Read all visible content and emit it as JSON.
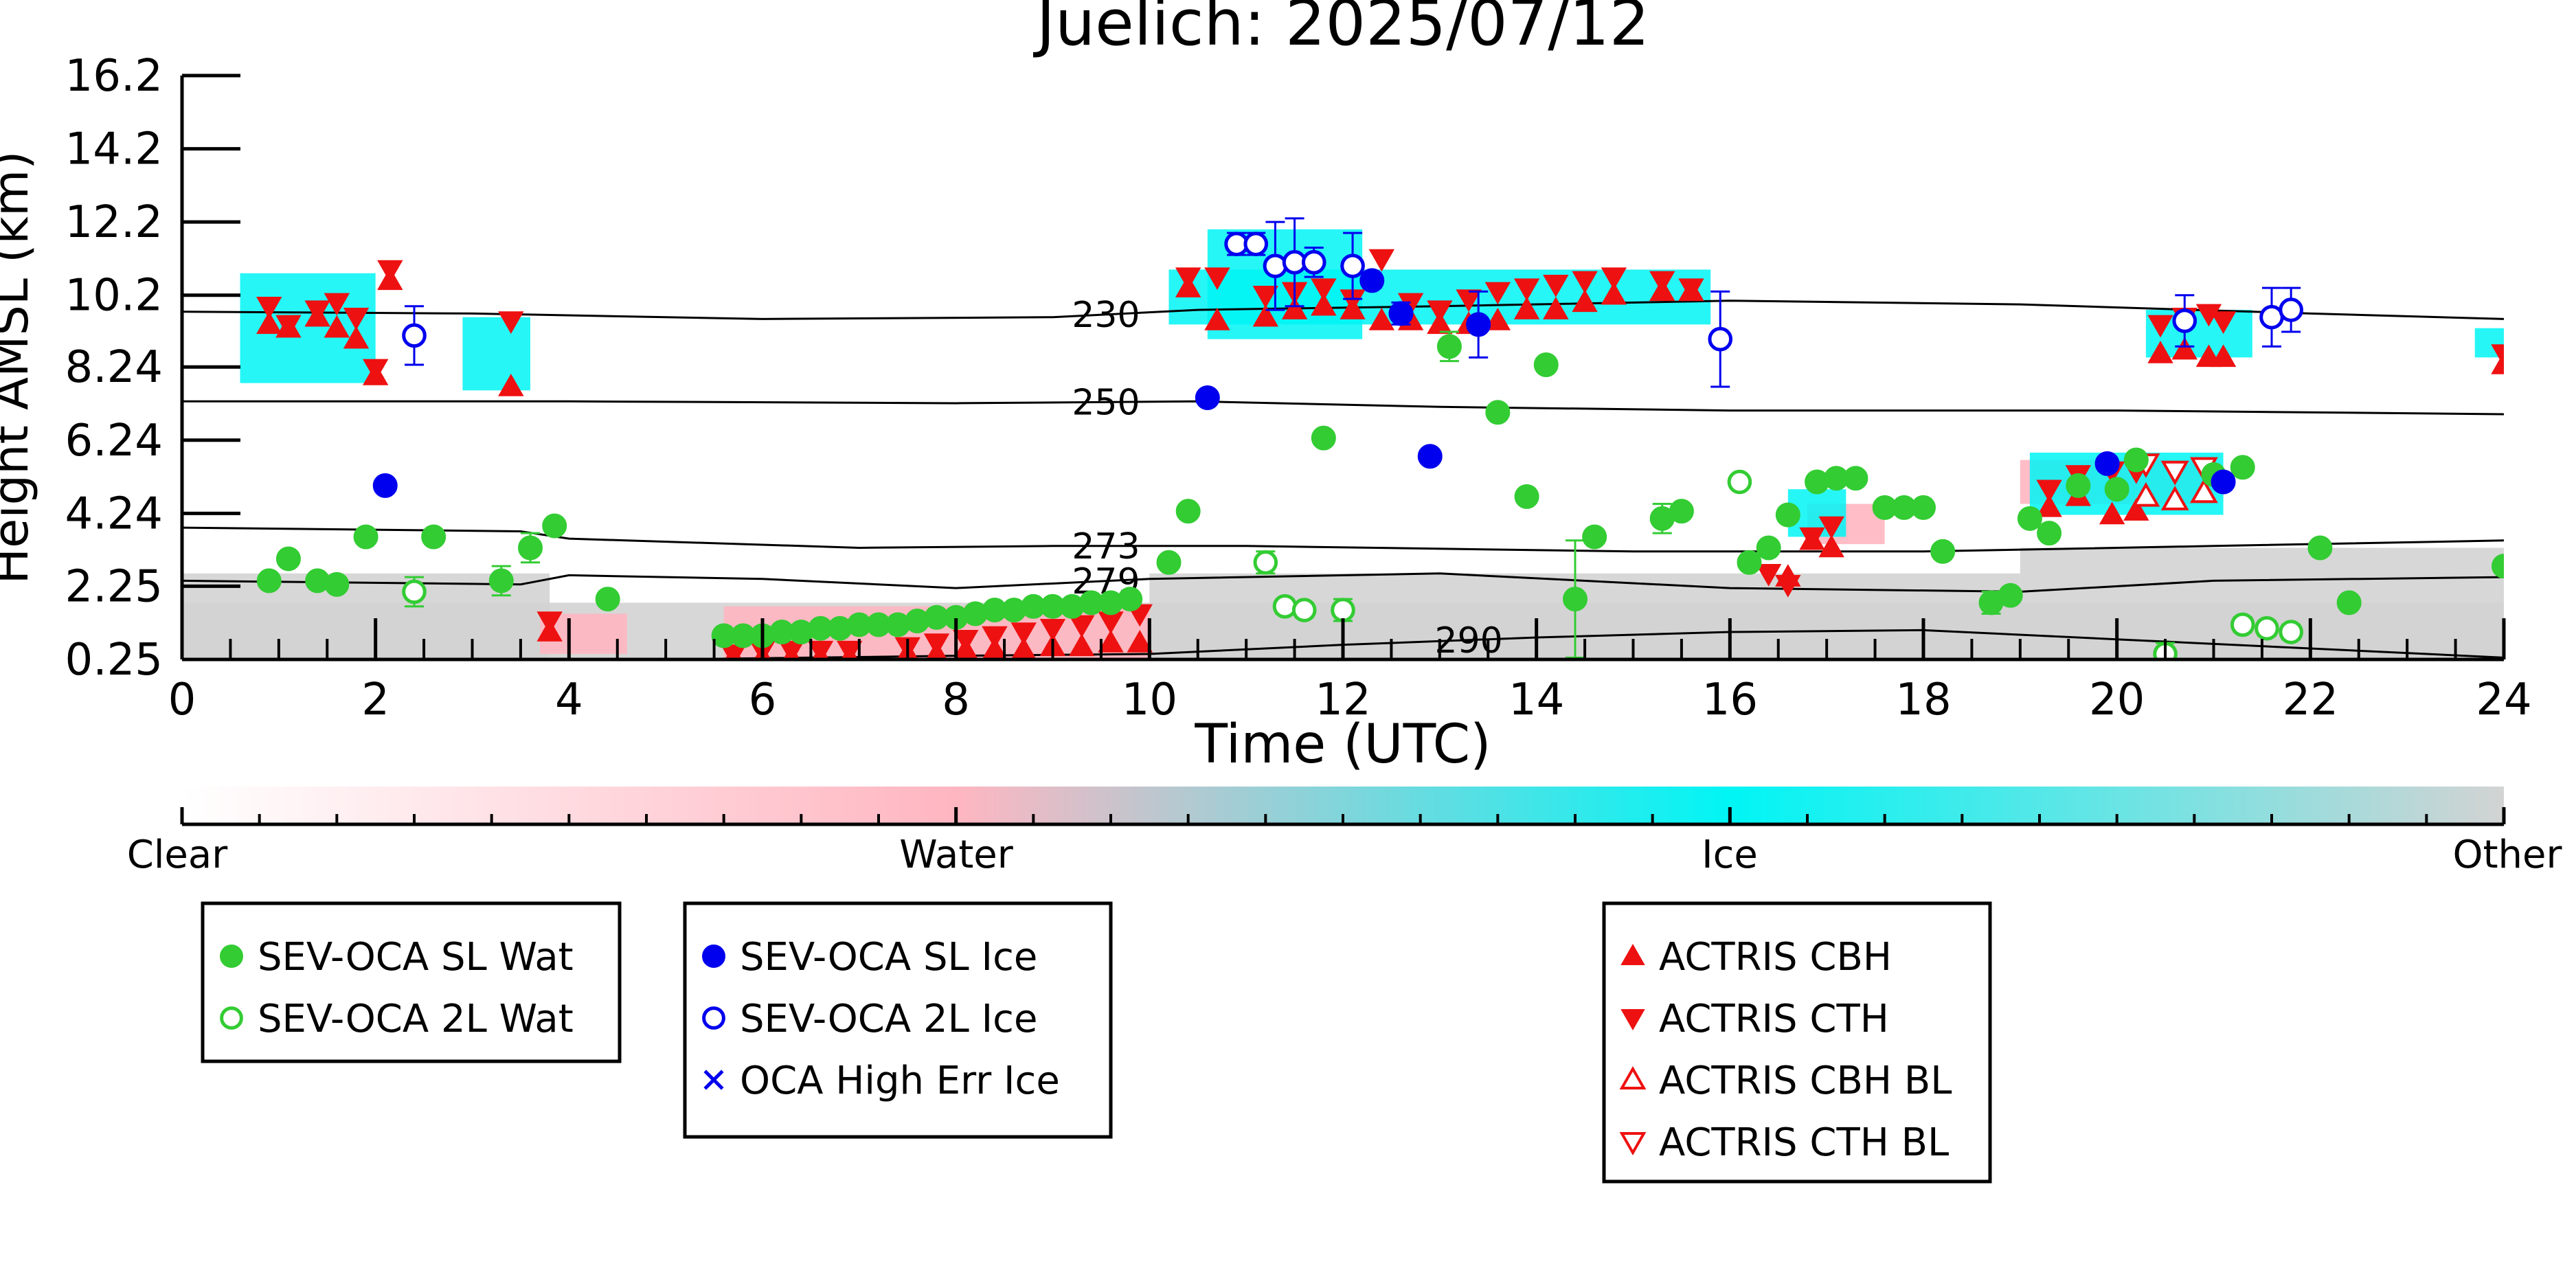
{
  "chart_data": {
    "type": "scatter",
    "title": "Juelich: 2025/07/12",
    "xlabel": "Time (UTC)",
    "ylabel": "Height AMSL (km)",
    "xlim": [
      0,
      24
    ],
    "ylim": [
      0.25,
      16.2
    ],
    "x_ticks": [
      0,
      2,
      4,
      6,
      8,
      10,
      12,
      14,
      16,
      18,
      20,
      22,
      24
    ],
    "x_tick_labels": [
      "0",
      "2",
      "4",
      "6",
      "8",
      "10",
      "12",
      "14",
      "16",
      "18",
      "20",
      "22",
      "24"
    ],
    "y_ticks": [
      0.25,
      2.25,
      4.24,
      6.24,
      8.24,
      10.2,
      12.2,
      14.2,
      16.2
    ],
    "y_tick_labels": [
      "0.25",
      "2.25",
      "4.24",
      "6.24",
      "8.24",
      "10.2",
      "12.2",
      "14.2",
      "16.2"
    ],
    "colorbar": {
      "labels": [
        "Clear",
        "Water",
        "Ice",
        "Other"
      ],
      "colors": [
        "#ffffff",
        "#ffb6c1",
        "#00f5f5",
        "#d3d3d3"
      ]
    },
    "colors": {
      "sl_wat": "#33cc33",
      "l2_wat": "#33cc33",
      "sl_ice": "#0000ee",
      "l2_ice": "#0000ee",
      "high_err": "#0000ee",
      "actris": "#ee1111",
      "water_mask": "#ffb6c1",
      "ice_mask": "#00f5f5",
      "other_mask": "#d3d3d3"
    },
    "isotherms": [
      {
        "label": "230",
        "label_x": 9.55,
        "points": [
          [
            0,
            9.75
          ],
          [
            3,
            9.7
          ],
          [
            6,
            9.55
          ],
          [
            9,
            9.6
          ],
          [
            10.5,
            9.8
          ],
          [
            13,
            9.9
          ],
          [
            16,
            10.05
          ],
          [
            19,
            9.95
          ],
          [
            22,
            9.7
          ],
          [
            24,
            9.55
          ]
        ]
      },
      {
        "label": "250",
        "label_x": 9.55,
        "points": [
          [
            0,
            7.3
          ],
          [
            4,
            7.3
          ],
          [
            8,
            7.25
          ],
          [
            10.5,
            7.3
          ],
          [
            13,
            7.15
          ],
          [
            16,
            7.05
          ],
          [
            20,
            7.05
          ],
          [
            24,
            6.95
          ]
        ]
      },
      {
        "label": "273",
        "label_x": 9.55,
        "points": [
          [
            0,
            3.85
          ],
          [
            3.5,
            3.75
          ],
          [
            4,
            3.55
          ],
          [
            7,
            3.3
          ],
          [
            9,
            3.35
          ],
          [
            11,
            3.35
          ],
          [
            15,
            3.2
          ],
          [
            18,
            3.2
          ],
          [
            21,
            3.35
          ],
          [
            24,
            3.5
          ]
        ]
      },
      {
        "label": "279",
        "label_x": 9.55,
        "points": [
          [
            0,
            2.4
          ],
          [
            3.5,
            2.3
          ],
          [
            4,
            2.55
          ],
          [
            6,
            2.45
          ],
          [
            8,
            2.2
          ],
          [
            10,
            2.45
          ],
          [
            13,
            2.6
          ],
          [
            16,
            2.2
          ],
          [
            19,
            2.1
          ],
          [
            21,
            2.4
          ],
          [
            24,
            2.5
          ]
        ]
      },
      {
        "label": "290",
        "label_x": 13.3,
        "points": [
          [
            0,
            0.25
          ],
          [
            5,
            0.25
          ],
          [
            8,
            0.35
          ],
          [
            10,
            0.4
          ],
          [
            12,
            0.65
          ],
          [
            14,
            0.85
          ],
          [
            16,
            1.0
          ],
          [
            18,
            1.05
          ],
          [
            20,
            0.8
          ],
          [
            22,
            0.55
          ],
          [
            24,
            0.3
          ]
        ]
      }
    ],
    "series": [
      {
        "name": "SEV-OCA SL Wat",
        "marker": "filled_circle",
        "color": "#33cc33",
        "x": [
          0.9,
          1.1,
          1.4,
          1.6,
          1.9,
          2.6,
          3.3,
          3.6,
          3.85,
          4.4,
          5.6,
          5.8,
          6.0,
          6.2,
          6.4,
          6.6,
          6.8,
          7.0,
          7.2,
          7.4,
          7.6,
          7.8,
          8.0,
          8.2,
          8.4,
          8.6,
          8.8,
          9.0,
          9.2,
          9.4,
          9.6,
          9.8,
          10.2,
          10.4,
          11.8,
          13.1,
          13.6,
          13.9,
          14.1,
          14.4,
          14.6,
          15.3,
          15.5,
          16.2,
          16.4,
          16.6,
          16.9,
          17.1,
          17.3,
          17.6,
          17.8,
          18.0,
          18.2,
          18.7,
          18.9,
          19.1,
          19.3,
          19.6,
          20.0,
          20.2,
          21.0,
          21.3,
          22.1,
          22.4,
          24.0
        ],
        "y": [
          2.4,
          3.0,
          2.4,
          2.3,
          3.6,
          3.6,
          2.4,
          3.3,
          3.9,
          1.9,
          0.9,
          0.9,
          0.9,
          1.0,
          1.0,
          1.1,
          1.1,
          1.2,
          1.2,
          1.2,
          1.3,
          1.4,
          1.4,
          1.5,
          1.6,
          1.6,
          1.7,
          1.7,
          1.7,
          1.8,
          1.8,
          1.9,
          2.9,
          4.3,
          6.3,
          8.8,
          7.0,
          4.7,
          8.3,
          1.9,
          3.6,
          4.1,
          4.3,
          2.9,
          3.3,
          4.2,
          5.1,
          5.2,
          5.2,
          4.4,
          4.4,
          4.4,
          3.2,
          1.8,
          2.0,
          4.1,
          3.7,
          5.0,
          4.9,
          5.7,
          5.3,
          5.5,
          3.3,
          1.8,
          2.8
        ],
        "y_err": [
          0.15,
          0.1,
          0.15,
          0.15,
          0.1,
          0.1,
          0.4,
          0.4,
          0.1,
          0.1,
          0.1,
          0.1,
          0.1,
          0.1,
          0.1,
          0.1,
          0.1,
          0.1,
          0.1,
          0.1,
          0.1,
          0.1,
          0.1,
          0.1,
          0.1,
          0.1,
          0.1,
          0.1,
          0.1,
          0.1,
          0.1,
          0.1,
          0.1,
          0.1,
          0.1,
          0.4,
          0.1,
          0.1,
          0.1,
          1.6,
          0.1,
          0.4,
          0.1,
          0.1,
          0.1,
          0.1,
          0.1,
          0.1,
          0.1,
          0.1,
          0.1,
          0.1,
          0.1,
          0.3,
          0.1,
          0.1,
          0.1,
          0.1,
          0.1,
          0.1,
          0.1,
          0.1,
          0.1,
          0.1,
          0.1
        ]
      },
      {
        "name": "SEV-OCA 2L Wat",
        "marker": "open_circle",
        "color": "#33cc33",
        "x": [
          2.4,
          11.2,
          11.4,
          11.6,
          12.0,
          16.1,
          20.5,
          21.3,
          21.55,
          21.8
        ],
        "y": [
          2.1,
          2.9,
          1.7,
          1.6,
          1.6,
          5.1,
          0.4,
          1.2,
          1.1,
          1.0
        ],
        "y_err": [
          0.4,
          0.3,
          0.2,
          0.2,
          0.3,
          0.1,
          0.3,
          0.2,
          0.2,
          0.2
        ]
      },
      {
        "name": "SEV-OCA SL Ice",
        "marker": "filled_circle",
        "color": "#0000ee",
        "x": [
          2.1,
          10.6,
          12.3,
          12.6,
          12.9,
          13.4,
          19.9,
          21.1
        ],
        "y": [
          5.0,
          7.4,
          10.6,
          9.7,
          5.8,
          9.4,
          5.6,
          5.1
        ],
        "y_err": [
          0.1,
          0.1,
          0.2,
          0.3,
          0.1,
          0.9,
          0.1,
          0.1
        ]
      },
      {
        "name": "SEV-OCA 2L Ice",
        "marker": "open_circle",
        "color": "#0000ee",
        "x": [
          2.4,
          10.9,
          11.1,
          11.3,
          11.5,
          11.7,
          12.1,
          15.9,
          20.7,
          21.6,
          21.8
        ],
        "y": [
          9.1,
          11.6,
          11.6,
          11.0,
          11.1,
          11.1,
          11.0,
          9.0,
          9.5,
          9.6,
          9.8
        ],
        "y_err": [
          0.8,
          0.3,
          0.3,
          1.2,
          1.2,
          0.4,
          0.9,
          1.3,
          0.7,
          0.8,
          0.6
        ]
      },
      {
        "name": "OCA High Err Ice",
        "marker": "x",
        "color": "#0000ee",
        "x": [],
        "y": []
      },
      {
        "name": "ACTRIS CBH",
        "marker": "triangle_up",
        "color": "#ee1111",
        "x": [
          0.9,
          1.1,
          1.4,
          1.6,
          1.8,
          2.0,
          2.15,
          3.4,
          3.8,
          5.7,
          6.0,
          6.3,
          6.6,
          6.9,
          7.5,
          7.8,
          8.1,
          8.4,
          8.7,
          9.0,
          9.3,
          9.6,
          9.9,
          10.4,
          10.7,
          11.2,
          11.5,
          11.8,
          12.1,
          12.4,
          12.7,
          13.0,
          13.3,
          13.6,
          13.9,
          14.2,
          14.5,
          14.8,
          15.3,
          15.6,
          16.6,
          16.85,
          17.05,
          19.3,
          19.6,
          19.95,
          20.2,
          20.45,
          20.7,
          20.95,
          21.1,
          24.0
        ],
        "y": [
          9.4,
          9.3,
          9.6,
          9.3,
          9.0,
          8.0,
          10.6,
          7.7,
          1.0,
          0.3,
          0.3,
          0.3,
          0.3,
          0.3,
          0.4,
          0.4,
          0.5,
          0.5,
          0.5,
          0.6,
          0.6,
          0.7,
          0.7,
          10.4,
          9.5,
          9.6,
          9.8,
          9.9,
          9.8,
          9.5,
          9.5,
          9.4,
          9.4,
          9.5,
          9.8,
          9.8,
          10.0,
          10.2,
          10.3,
          10.3,
          2.5,
          3.5,
          3.3,
          4.4,
          4.7,
          4.2,
          4.3,
          8.6,
          8.7,
          8.5,
          8.5,
          8.3
        ],
        "y_err": []
      },
      {
        "name": "ACTRIS CTH",
        "marker": "triangle_down",
        "color": "#ee1111",
        "x": [
          0.9,
          1.1,
          1.4,
          1.6,
          1.8,
          2.0,
          2.15,
          3.4,
          3.8,
          5.7,
          6.0,
          6.3,
          6.6,
          6.9,
          7.5,
          7.8,
          8.1,
          8.4,
          8.7,
          9.0,
          9.3,
          9.6,
          9.9,
          10.4,
          10.7,
          11.2,
          11.5,
          11.8,
          12.1,
          12.4,
          12.7,
          13.0,
          13.3,
          13.6,
          13.9,
          14.2,
          14.5,
          14.8,
          15.3,
          15.6,
          16.4,
          16.6,
          16.85,
          17.05,
          19.3,
          19.6,
          19.95,
          20.2,
          20.45,
          20.7,
          20.95,
          21.1,
          24.0
        ],
        "y": [
          9.9,
          9.4,
          9.8,
          10.0,
          9.6,
          8.2,
          10.9,
          9.5,
          1.3,
          0.4,
          0.5,
          0.5,
          0.5,
          0.5,
          0.6,
          0.7,
          0.8,
          0.9,
          1.0,
          1.1,
          1.2,
          1.3,
          1.5,
          10.7,
          10.7,
          10.2,
          10.3,
          10.4,
          10.1,
          11.2,
          10.0,
          9.8,
          10.1,
          10.3,
          10.4,
          10.5,
          10.6,
          10.7,
          10.6,
          10.4,
          2.6,
          2.3,
          3.6,
          3.9,
          4.9,
          5.3,
          5.4,
          5.4,
          9.4,
          9.6,
          9.7,
          9.5,
          8.6
        ],
        "y_err": []
      },
      {
        "name": "ACTRIS CBH BL",
        "marker": "open_triangle_up",
        "color": "#ee1111",
        "x": [
          20.3,
          20.6,
          20.9
        ],
        "y": [
          4.7,
          4.6,
          4.8
        ],
        "y_err": []
      },
      {
        "name": "ACTRIS CTH BL",
        "marker": "open_triangle_down",
        "color": "#ee1111",
        "x": [
          20.3,
          20.6,
          20.9
        ],
        "y": [
          5.6,
          5.4,
          5.5
        ],
        "y_err": []
      }
    ],
    "background_mask": {
      "ice_regions": [
        [
          0.6,
          2.0,
          7.8,
          10.8
        ],
        [
          2.9,
          3.6,
          7.6,
          9.6
        ],
        [
          10.2,
          15.8,
          9.4,
          10.9
        ],
        [
          10.6,
          12.2,
          9.0,
          12.0
        ],
        [
          16.6,
          17.2,
          3.6,
          4.9
        ],
        [
          19.1,
          21.1,
          4.2,
          5.9
        ],
        [
          20.3,
          21.4,
          8.5,
          9.8
        ],
        [
          23.7,
          24.0,
          8.5,
          9.3
        ]
      ],
      "water_regions": [
        [
          3.7,
          4.6,
          0.4,
          1.5
        ],
        [
          5.6,
          10.0,
          0.25,
          1.7
        ],
        [
          16.8,
          17.6,
          3.4,
          4.5
        ],
        [
          19.0,
          21.0,
          4.5,
          5.7
        ]
      ],
      "other_regions": [
        [
          0,
          24,
          0.25,
          1.8
        ],
        [
          0,
          3.8,
          0.25,
          2.6
        ],
        [
          10.0,
          19.0,
          0.25,
          2.6
        ],
        [
          19.0,
          24.0,
          0.25,
          3.3
        ]
      ]
    }
  },
  "legends": [
    {
      "entries": [
        {
          "label": "SEV-OCA SL Wat",
          "marker": "filled_circle",
          "color": "#33cc33"
        },
        {
          "label": "SEV-OCA 2L Wat",
          "marker": "open_circle",
          "color": "#33cc33"
        }
      ]
    },
    {
      "entries": [
        {
          "label": "SEV-OCA SL Ice",
          "marker": "filled_circle",
          "color": "#0000ee"
        },
        {
          "label": "SEV-OCA 2L Ice",
          "marker": "open_circle",
          "color": "#0000ee"
        },
        {
          "label": "OCA High Err Ice",
          "marker": "x",
          "color": "#0000ee"
        }
      ]
    },
    {
      "entries": [
        {
          "label": "ACTRIS CBH",
          "marker": "triangle_up",
          "color": "#ee1111"
        },
        {
          "label": "ACTRIS CTH",
          "marker": "triangle_down",
          "color": "#ee1111"
        },
        {
          "label": "ACTRIS CBH BL",
          "marker": "open_triangle_up",
          "color": "#ee1111"
        },
        {
          "label": "ACTRIS CTH BL",
          "marker": "open_triangle_down",
          "color": "#ee1111"
        }
      ]
    }
  ]
}
